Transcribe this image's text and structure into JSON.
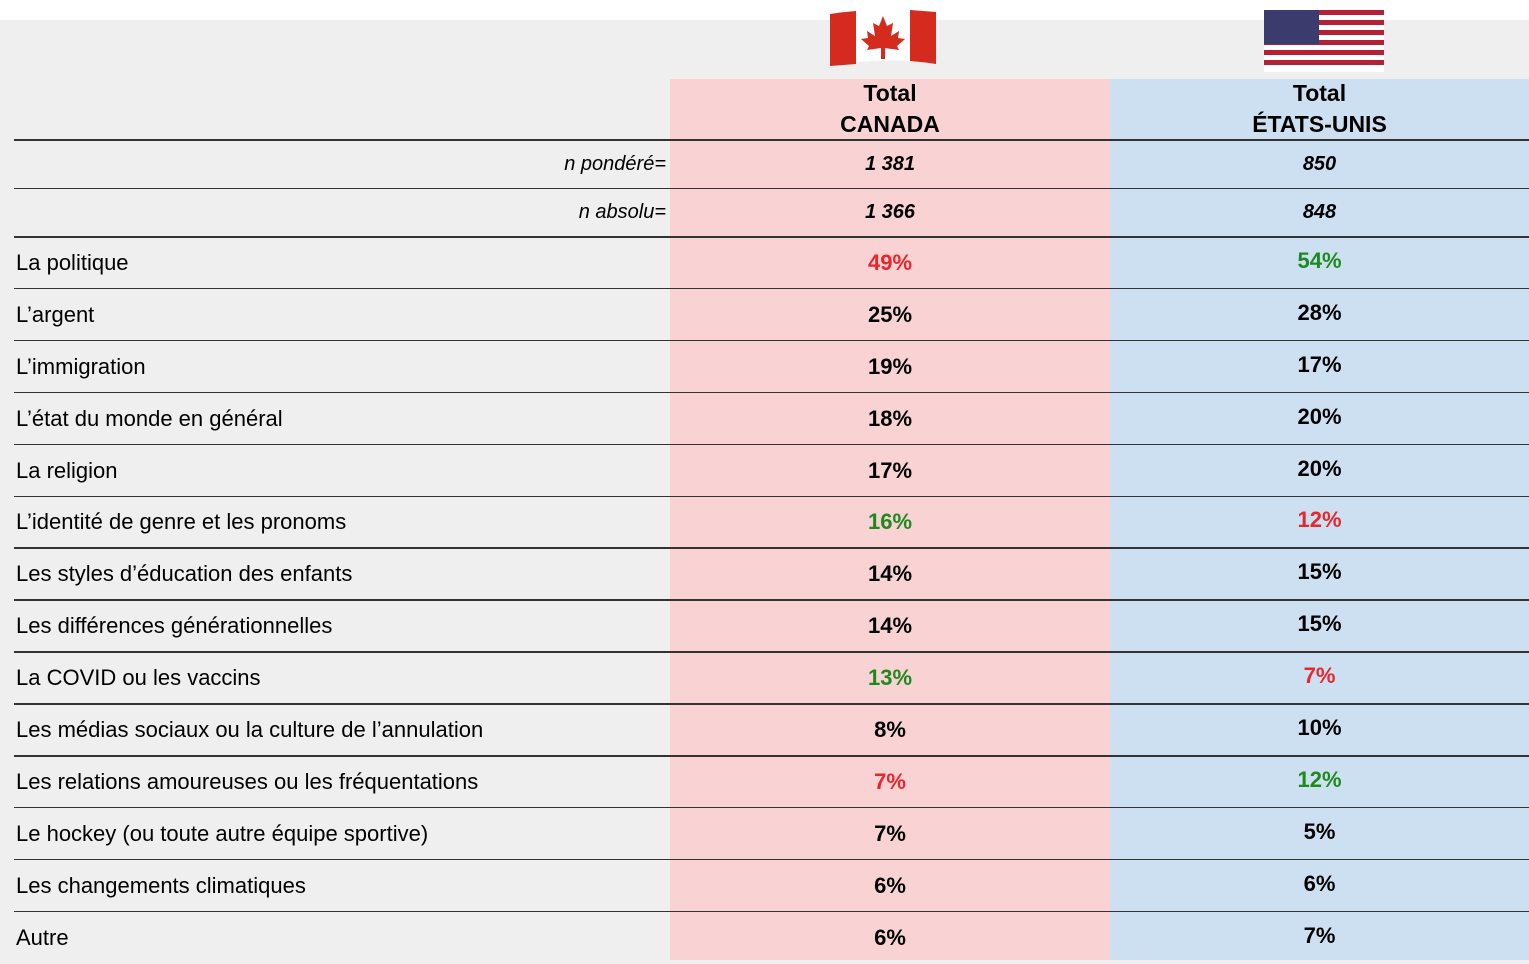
{
  "columns": [
    {
      "line1": "Total",
      "line2": "CANADA"
    },
    {
      "line1": "Total",
      "line2": "ÉTATS-UNIS"
    }
  ],
  "sample_rows": [
    {
      "label": "n pondéré=",
      "values": [
        "1 381",
        "850"
      ]
    },
    {
      "label": "n absolu=",
      "values": [
        "1 366",
        "848"
      ]
    }
  ],
  "rows": [
    {
      "label": "La politique",
      "values": [
        "49%",
        "54%"
      ],
      "colors": [
        "#e8262b",
        "#1e8a1e"
      ]
    },
    {
      "label": "L’argent",
      "values": [
        "25%",
        "28%"
      ],
      "colors": [
        "#000000",
        "#000000"
      ]
    },
    {
      "label": "L’immigration",
      "values": [
        "19%",
        "17%"
      ],
      "colors": [
        "#000000",
        "#000000"
      ]
    },
    {
      "label": "L’état du monde en général",
      "values": [
        "18%",
        "20%"
      ],
      "colors": [
        "#000000",
        "#000000"
      ]
    },
    {
      "label": "La religion",
      "values": [
        "17%",
        "20%"
      ],
      "colors": [
        "#000000",
        "#000000"
      ]
    },
    {
      "label": "L’identité de genre et les pronoms",
      "values": [
        "16%",
        "12%"
      ],
      "colors": [
        "#1e8a1e",
        "#e8262b"
      ]
    },
    {
      "label": "Les styles d’éducation des enfants",
      "values": [
        "14%",
        "15%"
      ],
      "colors": [
        "#000000",
        "#000000"
      ]
    },
    {
      "label": "Les différences générationnelles",
      "values": [
        "14%",
        "15%"
      ],
      "colors": [
        "#000000",
        "#000000"
      ]
    },
    {
      "label": "La COVID ou les vaccins",
      "values": [
        "13%",
        "7%"
      ],
      "colors": [
        "#1e8a1e",
        "#e8262b"
      ]
    },
    {
      "label": "Les médias sociaux ou la culture de l’annulation",
      "values": [
        "8%",
        "10%"
      ],
      "colors": [
        "#000000",
        "#000000"
      ]
    },
    {
      "label": "Les relations amoureuses ou les fréquentations",
      "values": [
        "7%",
        "12%"
      ],
      "colors": [
        "#e8262b",
        "#1e8a1e"
      ]
    },
    {
      "label": "Le hockey (ou toute autre équipe sportive)",
      "values": [
        "7%",
        "5%"
      ],
      "colors": [
        "#000000",
        "#000000"
      ]
    },
    {
      "label": "Les changements climatiques",
      "values": [
        "6%",
        "6%"
      ],
      "colors": [
        "#000000",
        "#000000"
      ]
    },
    {
      "label": "Autre",
      "values": [
        "6%",
        "7%"
      ],
      "colors": [
        "#000000",
        "#000000"
      ]
    }
  ]
}
